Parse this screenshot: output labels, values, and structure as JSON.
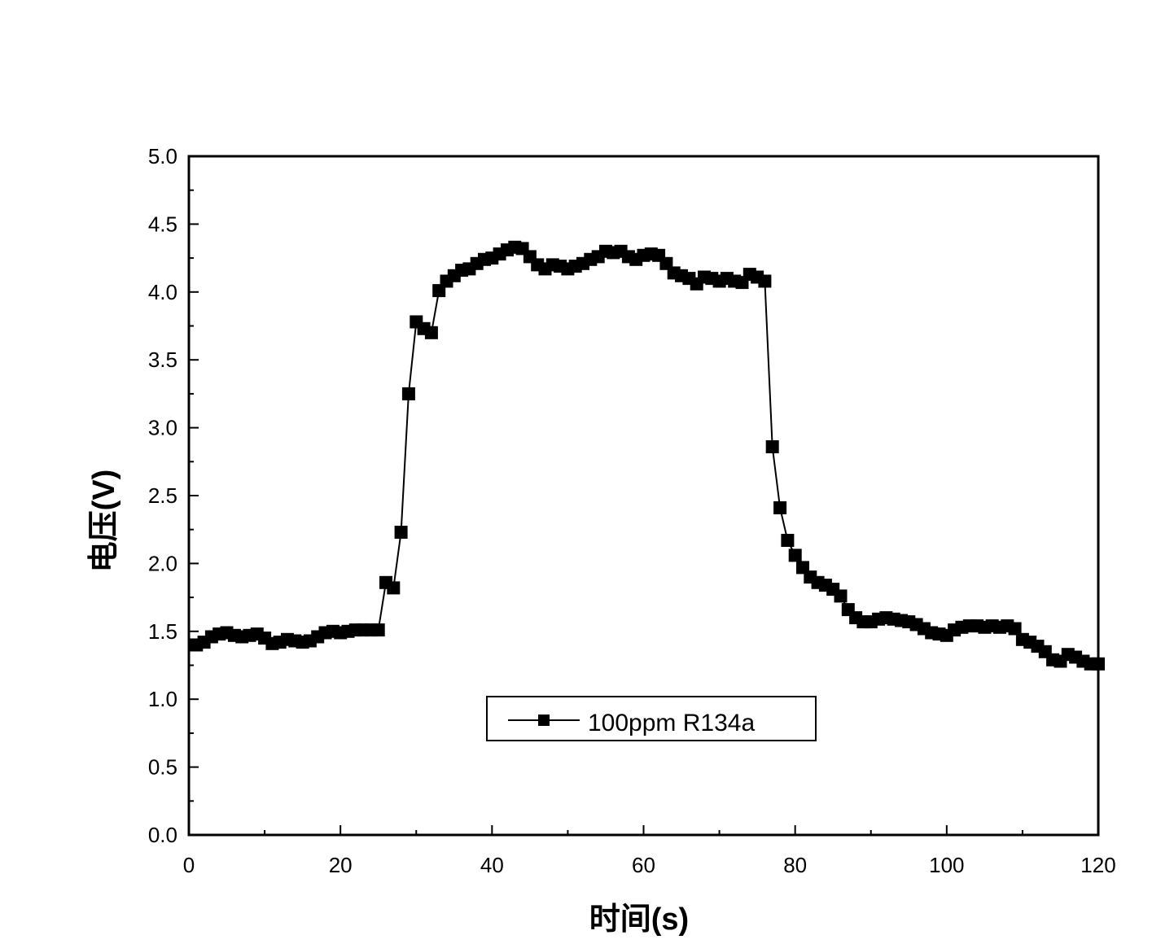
{
  "chart_data": {
    "type": "scatter",
    "title": "",
    "xlabel": "时间(s)",
    "ylabel": "电压(V)",
    "xlim": [
      0,
      120
    ],
    "ylim": [
      0.0,
      5.0
    ],
    "xticks": [
      "0",
      "20",
      "40",
      "60",
      "80",
      "100",
      "120"
    ],
    "yticks": [
      "0.0",
      "0.5",
      "1.0",
      "1.5",
      "2.0",
      "2.5",
      "3.0",
      "3.5",
      "4.0",
      "4.5",
      "5.0"
    ],
    "grid": false,
    "legend_position": "center",
    "colors": {
      "series": "#000000",
      "axis": "#000000",
      "background": "#ffffff"
    },
    "series": [
      {
        "name": "100ppm R134a",
        "marker": "square",
        "line": true,
        "x": [
          1,
          2,
          3,
          4,
          5,
          6,
          7,
          8,
          9,
          10,
          11,
          12,
          13,
          14,
          15,
          16,
          17,
          18,
          19,
          20,
          21,
          22,
          23,
          24,
          25,
          26,
          27,
          28,
          29,
          30,
          31,
          32,
          33,
          34,
          35,
          36,
          37,
          38,
          39,
          40,
          41,
          42,
          43,
          44,
          45,
          46,
          47,
          48,
          49,
          50,
          51,
          52,
          53,
          54,
          55,
          56,
          57,
          58,
          59,
          60,
          61,
          62,
          63,
          64,
          65,
          66,
          67,
          68,
          69,
          70,
          71,
          72,
          73,
          74,
          75,
          76,
          77,
          78,
          79,
          80,
          81,
          82,
          83,
          84,
          85,
          86,
          87,
          88,
          89,
          90,
          91,
          92,
          93,
          94,
          95,
          96,
          97,
          98,
          99,
          100,
          101,
          102,
          103,
          104,
          105,
          106,
          107,
          108,
          109,
          110,
          111,
          112,
          113,
          114,
          115,
          116,
          117,
          118,
          119,
          120
        ],
        "y": [
          1.4,
          1.42,
          1.46,
          1.48,
          1.49,
          1.47,
          1.46,
          1.47,
          1.48,
          1.45,
          1.41,
          1.42,
          1.44,
          1.43,
          1.42,
          1.43,
          1.46,
          1.49,
          1.5,
          1.49,
          1.5,
          1.51,
          1.51,
          1.51,
          1.51,
          1.86,
          1.82,
          2.23,
          3.25,
          3.78,
          3.73,
          3.7,
          4.01,
          4.08,
          4.12,
          4.16,
          4.17,
          4.21,
          4.24,
          4.25,
          4.28,
          4.31,
          4.33,
          4.32,
          4.26,
          4.2,
          4.17,
          4.2,
          4.19,
          4.17,
          4.19,
          4.21,
          4.24,
          4.26,
          4.3,
          4.29,
          4.3,
          4.26,
          4.24,
          4.27,
          4.28,
          4.27,
          4.21,
          4.14,
          4.12,
          4.1,
          4.06,
          4.11,
          4.1,
          4.08,
          4.1,
          4.08,
          4.07,
          4.13,
          4.11,
          4.08,
          2.86,
          2.41,
          2.17,
          2.06,
          1.97,
          1.9,
          1.86,
          1.84,
          1.81,
          1.76,
          1.66,
          1.6,
          1.57,
          1.57,
          1.59,
          1.6,
          1.59,
          1.58,
          1.57,
          1.55,
          1.52,
          1.49,
          1.48,
          1.47,
          1.51,
          1.53,
          1.54,
          1.54,
          1.53,
          1.54,
          1.53,
          1.54,
          1.52,
          1.44,
          1.42,
          1.39,
          1.35,
          1.29,
          1.28,
          1.33,
          1.31,
          1.28,
          1.26,
          1.26
        ]
      }
    ]
  }
}
